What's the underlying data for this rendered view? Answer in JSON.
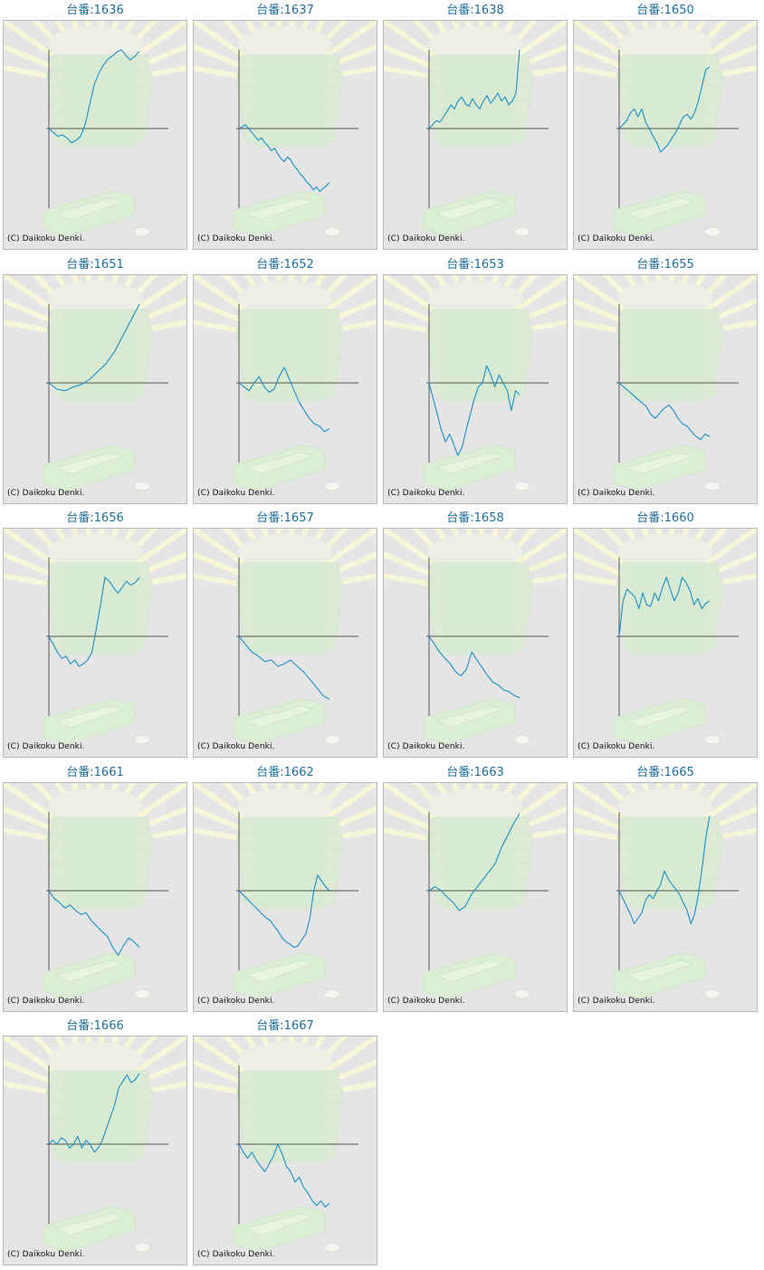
{
  "label_prefix": "台番:",
  "copyright": "(C) Daikoku Denki.",
  "line_color": "#1a8fc8",
  "axis_color": "#555555",
  "machines": [
    {
      "id": "1636",
      "series": [
        0,
        -0.05,
        -0.1,
        -0.08,
        -0.12,
        -0.18,
        -0.15,
        -0.1,
        0.05,
        0.3,
        0.55,
        0.7,
        0.8,
        0.88,
        0.92,
        0.97,
        1.0,
        0.93,
        0.87,
        0.92,
        0.98
      ]
    },
    {
      "id": "1637",
      "series": [
        0,
        0.02,
        0.05,
        0.0,
        -0.05,
        -0.1,
        -0.15,
        -0.12,
        -0.18,
        -0.22,
        -0.28,
        -0.25,
        -0.32,
        -0.38,
        -0.42,
        -0.36,
        -0.4,
        -0.47,
        -0.52,
        -0.58,
        -0.62,
        -0.68,
        -0.72,
        -0.78,
        -0.74,
        -0.8,
        -0.76,
        -0.73,
        -0.68
      ]
    },
    {
      "id": "1638",
      "series": [
        0,
        0.05,
        0.1,
        0.08,
        0.15,
        0.22,
        0.3,
        0.25,
        0.35,
        0.4,
        0.32,
        0.28,
        0.38,
        0.3,
        0.25,
        0.35,
        0.42,
        0.32,
        0.38,
        0.45,
        0.35,
        0.4,
        0.3,
        0.35,
        0.45,
        1.0
      ]
    },
    {
      "id": "1650",
      "series": [
        0,
        0.05,
        0.1,
        0.2,
        0.25,
        0.15,
        0.25,
        0.08,
        0.0,
        -0.1,
        -0.18,
        -0.3,
        -0.25,
        -0.2,
        -0.12,
        -0.05,
        0.05,
        0.15,
        0.18,
        0.12,
        0.2,
        0.35,
        0.55,
        0.75,
        0.78
      ]
    },
    {
      "id": "1651",
      "series": [
        0,
        -0.08,
        -0.1,
        -0.05,
        -0.02,
        0.05,
        0.15,
        0.25,
        0.4,
        0.6,
        0.8,
        1.0
      ]
    },
    {
      "id": "1652",
      "series": [
        0,
        -0.05,
        -0.1,
        0.0,
        0.08,
        -0.05,
        -0.12,
        -0.08,
        0.08,
        0.2,
        0.05,
        -0.1,
        -0.25,
        -0.35,
        -0.45,
        -0.52,
        -0.55,
        -0.62,
        -0.58
      ]
    },
    {
      "id": "1653",
      "series": [
        0,
        -0.2,
        -0.4,
        -0.6,
        -0.75,
        -0.65,
        -0.78,
        -0.92,
        -0.82,
        -0.6,
        -0.4,
        -0.2,
        -0.05,
        0.0,
        0.22,
        0.1,
        -0.05,
        0.1,
        0.0,
        -0.1,
        -0.35,
        -0.1,
        -0.15
      ]
    },
    {
      "id": "1655",
      "series": [
        0,
        -0.05,
        -0.1,
        -0.15,
        -0.2,
        -0.25,
        -0.3,
        -0.4,
        -0.45,
        -0.38,
        -0.32,
        -0.28,
        -0.35,
        -0.45,
        -0.52,
        -0.55,
        -0.62,
        -0.68,
        -0.72,
        -0.65,
        -0.68
      ]
    },
    {
      "id": "1656",
      "series": [
        0,
        -0.1,
        -0.2,
        -0.28,
        -0.25,
        -0.35,
        -0.3,
        -0.38,
        -0.35,
        -0.3,
        -0.2,
        0.1,
        0.4,
        0.75,
        0.7,
        0.62,
        0.55,
        0.62,
        0.7,
        0.65,
        0.68,
        0.75
      ]
    },
    {
      "id": "1657",
      "series": [
        0,
        -0.1,
        -0.2,
        -0.25,
        -0.32,
        -0.3,
        -0.38,
        -0.35,
        -0.3,
        -0.38,
        -0.45,
        -0.55,
        -0.65,
        -0.75,
        -0.8
      ]
    },
    {
      "id": "1658",
      "series": [
        0,
        -0.1,
        -0.2,
        -0.28,
        -0.35,
        -0.45,
        -0.5,
        -0.42,
        -0.2,
        -0.3,
        -0.4,
        -0.5,
        -0.58,
        -0.62,
        -0.68,
        -0.7,
        -0.75,
        -0.78
      ]
    },
    {
      "id": "1660",
      "series": [
        0,
        0.45,
        0.6,
        0.55,
        0.5,
        0.35,
        0.55,
        0.4,
        0.38,
        0.55,
        0.45,
        0.62,
        0.75,
        0.6,
        0.45,
        0.55,
        0.75,
        0.68,
        0.58,
        0.4,
        0.48,
        0.35,
        0.42,
        0.45
      ]
    },
    {
      "id": "1661",
      "series": [
        0,
        -0.1,
        -0.15,
        -0.22,
        -0.18,
        -0.25,
        -0.3,
        -0.28,
        -0.38,
        -0.45,
        -0.52,
        -0.58,
        -0.72,
        -0.82,
        -0.7,
        -0.6,
        -0.65,
        -0.72
      ]
    },
    {
      "id": "1662",
      "series": [
        0,
        -0.05,
        -0.1,
        -0.15,
        -0.2,
        -0.25,
        -0.3,
        -0.35,
        -0.38,
        -0.45,
        -0.52,
        -0.6,
        -0.65,
        -0.68,
        -0.72,
        -0.7,
        -0.62,
        -0.55,
        -0.35,
        0.0,
        0.2,
        0.12,
        0.05,
        0.0
      ]
    },
    {
      "id": "1663",
      "series": [
        0,
        0.05,
        0.0,
        -0.08,
        -0.15,
        -0.25,
        -0.2,
        -0.05,
        0.05,
        0.15,
        0.25,
        0.35,
        0.55,
        0.7,
        0.85,
        0.98
      ]
    },
    {
      "id": "1665",
      "series": [
        0,
        -0.1,
        -0.2,
        -0.3,
        -0.42,
        -0.35,
        -0.28,
        -0.12,
        -0.05,
        -0.1,
        0.0,
        0.08,
        0.25,
        0.15,
        0.08,
        0.02,
        -0.05,
        -0.15,
        -0.25,
        -0.42,
        -0.3,
        -0.05,
        0.3,
        0.68,
        0.95
      ]
    },
    {
      "id": "1666",
      "series": [
        0,
        0.05,
        0.0,
        0.08,
        0.05,
        -0.05,
        0.0,
        0.1,
        -0.05,
        0.05,
        0.0,
        -0.1,
        -0.05,
        0.05,
        0.2,
        0.35,
        0.5,
        0.72,
        0.8,
        0.88,
        0.78,
        0.82,
        0.9
      ]
    },
    {
      "id": "1667",
      "series": [
        0,
        -0.1,
        -0.18,
        -0.1,
        -0.2,
        -0.28,
        -0.35,
        -0.25,
        -0.15,
        0.0,
        -0.12,
        -0.28,
        -0.35,
        -0.48,
        -0.42,
        -0.55,
        -0.62,
        -0.72,
        -0.78,
        -0.72,
        -0.8,
        -0.75
      ]
    }
  ]
}
